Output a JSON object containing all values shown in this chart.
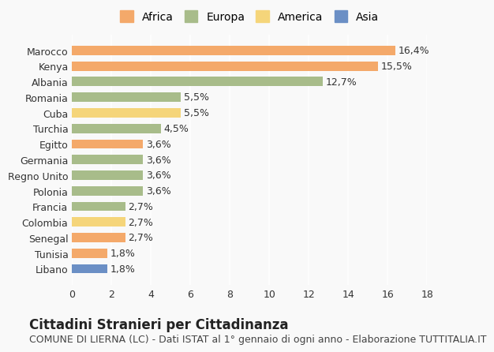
{
  "categories": [
    "Libano",
    "Tunisia",
    "Senegal",
    "Colombia",
    "Francia",
    "Polonia",
    "Regno Unito",
    "Germania",
    "Egitto",
    "Turchia",
    "Cuba",
    "Romania",
    "Albania",
    "Kenya",
    "Marocco"
  ],
  "values": [
    1.8,
    1.8,
    2.7,
    2.7,
    2.7,
    3.6,
    3.6,
    3.6,
    3.6,
    4.5,
    5.5,
    5.5,
    12.7,
    15.5,
    16.4
  ],
  "labels": [
    "1,8%",
    "1,8%",
    "2,7%",
    "2,7%",
    "2,7%",
    "3,6%",
    "3,6%",
    "3,6%",
    "3,6%",
    "4,5%",
    "5,5%",
    "5,5%",
    "12,7%",
    "15,5%",
    "16,4%"
  ],
  "continents": [
    "Asia",
    "Africa",
    "Africa",
    "America",
    "Europa",
    "Europa",
    "Europa",
    "Europa",
    "Africa",
    "Europa",
    "America",
    "Europa",
    "Europa",
    "Africa",
    "Africa"
  ],
  "colors": {
    "Africa": "#F4A96A",
    "Europa": "#A8BC8A",
    "America": "#F5D57A",
    "Asia": "#6B8FC5"
  },
  "legend_order": [
    "Africa",
    "Europa",
    "America",
    "Asia"
  ],
  "xlim": [
    0,
    18
  ],
  "xticks": [
    0,
    2,
    4,
    6,
    8,
    10,
    12,
    14,
    16,
    18
  ],
  "title": "Cittadini Stranieri per Cittadinanza",
  "subtitle": "COMUNE DI LIERNA (LC) - Dati ISTAT al 1° gennaio di ogni anno - Elaborazione TUTTITALIA.IT",
  "background_color": "#f9f9f9",
  "bar_height": 0.6,
  "label_fontsize": 9,
  "tick_fontsize": 9,
  "title_fontsize": 12,
  "subtitle_fontsize": 9
}
